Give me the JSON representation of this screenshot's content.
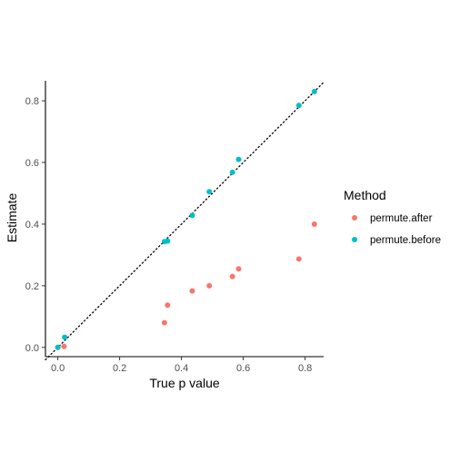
{
  "chart_data": {
    "type": "scatter",
    "title": "",
    "xlabel": "True p value",
    "ylabel": "Estimate",
    "xlim": [
      -0.04,
      0.86
    ],
    "ylim": [
      -0.03,
      0.865
    ],
    "xticks": [
      0.0,
      0.2,
      0.4,
      0.6,
      0.8
    ],
    "xtick_labels": [
      "0.0",
      "0.2",
      "0.4",
      "0.6",
      "0.8"
    ],
    "yticks": [
      0.0,
      0.2,
      0.4,
      0.6,
      0.8
    ],
    "ytick_labels": [
      "0.0",
      "0.2",
      "0.4",
      "0.6",
      "0.8"
    ],
    "grid": false,
    "reference_line": {
      "style": "dotted",
      "slope": 1,
      "intercept": 0
    },
    "legend": {
      "title": "Method",
      "position": "right"
    },
    "series": [
      {
        "name": "permute.after",
        "color": "#F8766D",
        "points": [
          {
            "x": 0.0,
            "y": 0.0
          },
          {
            "x": 0.02,
            "y": 0.003
          },
          {
            "x": 0.345,
            "y": 0.08
          },
          {
            "x": 0.355,
            "y": 0.137
          },
          {
            "x": 0.435,
            "y": 0.183
          },
          {
            "x": 0.49,
            "y": 0.2
          },
          {
            "x": 0.565,
            "y": 0.23
          },
          {
            "x": 0.585,
            "y": 0.255
          },
          {
            "x": 0.78,
            "y": 0.287
          },
          {
            "x": 0.83,
            "y": 0.4
          }
        ]
      },
      {
        "name": "permute.before",
        "color": "#00BFC4",
        "points": [
          {
            "x": 0.0,
            "y": 0.0
          },
          {
            "x": 0.022,
            "y": 0.033
          },
          {
            "x": 0.345,
            "y": 0.343
          },
          {
            "x": 0.355,
            "y": 0.345
          },
          {
            "x": 0.435,
            "y": 0.428
          },
          {
            "x": 0.49,
            "y": 0.505
          },
          {
            "x": 0.565,
            "y": 0.568
          },
          {
            "x": 0.585,
            "y": 0.61
          },
          {
            "x": 0.78,
            "y": 0.785
          },
          {
            "x": 0.83,
            "y": 0.83
          }
        ]
      }
    ]
  }
}
